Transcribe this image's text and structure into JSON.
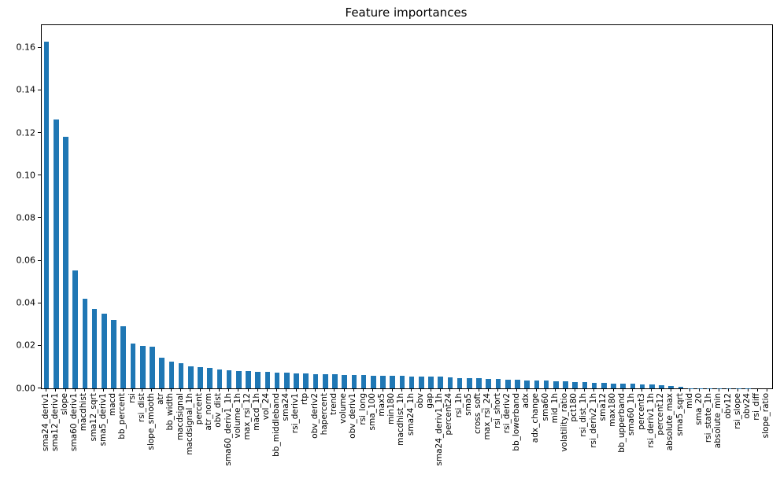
{
  "title": "Feature importances",
  "chart_data": {
    "type": "bar",
    "title": "Feature importances",
    "xlabel": "",
    "ylabel": "",
    "ylim": [
      0,
      0.1706
    ],
    "yticks": [
      0.0,
      0.02,
      0.04,
      0.06,
      0.08,
      0.1,
      0.12,
      0.14,
      0.16
    ],
    "ytick_labels": [
      "0.00",
      "0.02",
      "0.04",
      "0.06",
      "0.08",
      "0.10",
      "0.12",
      "0.14",
      "0.16"
    ],
    "grid": false,
    "legend_position": "none",
    "bar_color": "#1f77b4",
    "categories": [
      "sma24_deriv1",
      "sma12_deriv1",
      "slope",
      "sma60_deriv1",
      "macdhist",
      "sma12_sqrt",
      "sma5_deriv1",
      "macd",
      "bb_percent",
      "rsi",
      "rsi_dist",
      "slope_smooth",
      "atr",
      "bb_width",
      "macdsignal",
      "macdsignal_1h",
      "percent",
      "atr_norm",
      "obv_dist",
      "sma60_deriv1_1h",
      "volume_1h",
      "max_rsi_12",
      "macd_1h",
      "vol_24",
      "bb_middleband",
      "sma24",
      "rsi_deriv1",
      "rtp",
      "obv_deriv2",
      "hapercent",
      "trend",
      "volume",
      "obv_deriv1",
      "rsi_long",
      "sma_100",
      "max5",
      "min180",
      "macdhist_1h",
      "sma24_1h",
      "obv",
      "gap",
      "sma24_deriv1_1h",
      "percent24",
      "rsi_1h",
      "sma5",
      "cross_soft",
      "max_rsi_24",
      "rsi_short",
      "rsi_deriv2",
      "bb_lowerband",
      "adx",
      "adx_change",
      "sma60",
      "mid_1h",
      "volatility_ratio",
      "pct180",
      "rsi_dist_1h",
      "rsi_deriv2_1h",
      "sma12",
      "max180",
      "bb_upperband",
      "sma60_1h",
      "percent3",
      "rsi_deriv1_1h",
      "percent12",
      "absolute_max",
      "sma5_sqrt",
      "mid",
      "sma_20",
      "rsi_state_1h",
      "absolute_min",
      "obv12",
      "rsi_slope",
      "obv24",
      "rsi_diff",
      "slope_ratio"
    ],
    "values": [
      0.163,
      0.1262,
      0.118,
      0.0554,
      0.0421,
      0.0372,
      0.035,
      0.0321,
      0.0292,
      0.021,
      0.02,
      0.0196,
      0.0145,
      0.0127,
      0.012,
      0.0103,
      0.01,
      0.0097,
      0.009,
      0.0085,
      0.0082,
      0.008,
      0.0079,
      0.0077,
      0.0075,
      0.0074,
      0.0072,
      0.007,
      0.0068,
      0.0067,
      0.0065,
      0.0064,
      0.0063,
      0.0062,
      0.0061,
      0.006,
      0.0059,
      0.0058,
      0.0057,
      0.0056,
      0.0055,
      0.0054,
      0.0052,
      0.005,
      0.0049,
      0.0047,
      0.0045,
      0.0043,
      0.0041,
      0.0039,
      0.0038,
      0.0037,
      0.0036,
      0.0034,
      0.0032,
      0.003,
      0.0028,
      0.0027,
      0.0025,
      0.0023,
      0.0022,
      0.0021,
      0.002,
      0.0017,
      0.0015,
      0.0013,
      0.0007,
      0.0002,
      0.0002,
      0.0001,
      0.0001,
      0.0001,
      0.0001,
      0.0001,
      0.0,
      0.0
    ]
  }
}
